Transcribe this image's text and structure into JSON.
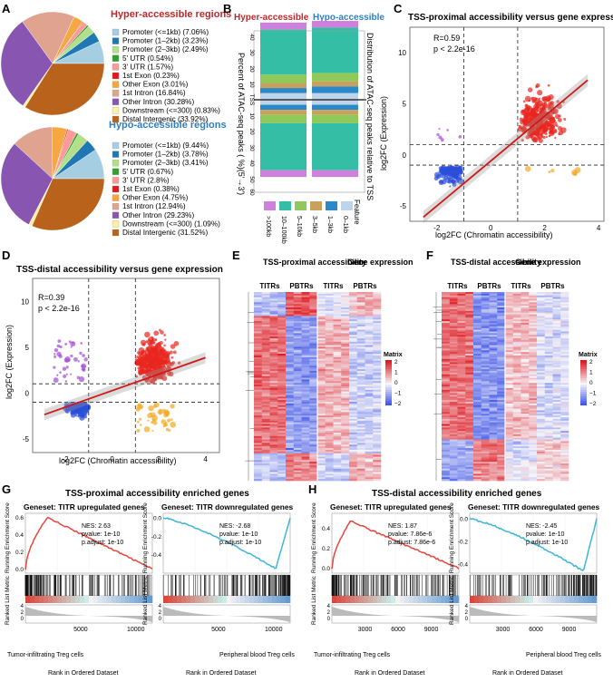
{
  "panelA": {
    "letter": "A",
    "hyper_title": "Hyper-accessible regions",
    "hypo_title": "Hypo-accessible regions",
    "hyper_legend": [
      "Promoter (<=1kb) (7.06%)",
      "Promoter (1–2kb) (3.23%)",
      "Promoter (2–3kb) (2.49%)",
      "5' UTR (0.54%)",
      "3' UTR (1.57%)",
      "1st Exon (0.23%)",
      "Other Exon (3.01%)",
      "1st Intron (16.84%)",
      "Other Intron (30.28%)",
      "Downstream (<=300) (0.83%)",
      "Distal Intergenic (33.92%)"
    ],
    "hypo_legend": [
      "Promoter (<=1kb) (9.44%)",
      "Promoter (1–2kb) (3.78%)",
      "Promoter (2–3kb) (3.41%)",
      "5' UTR (0.67%)",
      "3' UTR (2.8%)",
      "1st Exon (0.38%)",
      "Other Exon (4.75%)",
      "1st Intron (12.94%)",
      "Other Intron (29.23%)",
      "Downstream (<=300) (1.09%)",
      "Distal Intergenic (31.52%)"
    ]
  },
  "panelB": {
    "letter": "B",
    "title_hyper": "Hyper-accessible",
    "title_hypo": "Hypo-accessible",
    "ylabel": "Percent of ATAC-seq peaks ( %)(5'→3')",
    "right_label": "Distribution of ATAC-seq peaks relative to TSS",
    "ticks": [
      "40",
      "30",
      "20",
      "10",
      "TSS",
      "10",
      "20",
      "30",
      "40",
      "50",
      "60"
    ],
    "legend_title": "Feature",
    "legend": [
      ">100kb",
      "10–100kb",
      "5–10kb",
      "3–5kb",
      "1–3kb",
      "0–1kb"
    ]
  },
  "panelC": {
    "letter": "C",
    "title": "TSS-proximal accessibility versus gene expression",
    "stat_r": "R=0.59",
    "stat_p": "p < 2.2e-16",
    "xlabel": "log2FC (Chromatin accessibility)",
    "ylabel": "log2FC (Expression)",
    "xticks": [
      "-2",
      "0",
      "2",
      "4"
    ],
    "yticks": [
      "10",
      "5",
      "0",
      "-5"
    ]
  },
  "panelD": {
    "letter": "D",
    "title": "TSS-distal accessibility versus gene expression",
    "stat_r": "R=0.39",
    "stat_p": "p < 2.2e-16",
    "xlabel": "log2FC (Chromatin accessibility)",
    "ylabel": "log2FC (Expression)",
    "xticks": [
      "-2",
      "0",
      "2",
      "4"
    ],
    "yticks": [
      "10",
      "5",
      "0",
      "-5"
    ]
  },
  "panelE": {
    "letter": "E",
    "header_left": "TSS-proximal accessibility",
    "header_right": "Gene expression",
    "cols": [
      "TITRs",
      "PBTRs",
      "TITRs",
      "PBTRs"
    ],
    "legend_title": "Matrix",
    "legend_ticks": [
      "2",
      "1",
      "0",
      "−1",
      "−2"
    ]
  },
  "panelF": {
    "letter": "F",
    "header_left": "TSS-distal accessibility",
    "header_right": "Gene expression",
    "cols": [
      "TITRs",
      "PBTRs",
      "TITRs",
      "PBTRs"
    ],
    "legend_title": "Matrix",
    "legend_ticks": [
      "2",
      "1",
      "0",
      "−1",
      "−2"
    ]
  },
  "panelG": {
    "letter": "G",
    "title": "TSS-proximal accessibility enriched genes",
    "left": {
      "geneset": "Geneset: TITR upregulated genes",
      "nes": "NES: 2.63",
      "pvalue": "pvalue: 1e-10",
      "padj": "p.adjust: 1e-10"
    },
    "right": {
      "geneset": "Geneset: TITR downregulated genes",
      "nes": "NES: -2.68",
      "pvalue": "pvalue: 1e-10",
      "padj": "p.adjust: 1e-10"
    },
    "xlabel": "Rank in Ordered Dataset",
    "ylabel_top": "Running Enrichment Score",
    "ylabel_bottom": "Ranked List Metric",
    "label_left": "Tumor-infiltrating Treg cells",
    "label_right": "Peripheral blood Treg cells",
    "xticks_left": [
      "5000",
      "10000"
    ],
    "xticks_right": [
      "5000",
      "10000"
    ]
  },
  "panelH": {
    "letter": "H",
    "title": "TSS-distal accessibility enriched genes",
    "left": {
      "geneset": "Geneset: TITR upregulated genes",
      "nes": "NES: 1.87",
      "pvalue": "pvalue: 7.86e-6",
      "padj": "p.adjust: 7.86e-6"
    },
    "right": {
      "geneset": "Geneset: TITR downregulated genes",
      "nes": "NES: -2.45",
      "pvalue": "pvalue: 1e-10",
      "padj": "p.adjust: 1e-10"
    },
    "xlabel": "Rank in Ordered Dataset",
    "ylabel_top": "Running Enrichment Score",
    "ylabel_bottom": "Ranked List Metric",
    "label_left": "Tumor-infiltrating Treg cells",
    "label_right": "Peripheral blood Treg cells",
    "xticks_left": [
      "3000",
      "6000",
      "9000"
    ],
    "xticks_right": [
      "3000",
      "6000",
      "9000"
    ]
  },
  "chart_data": [
    {
      "type": "pie",
      "title": "Hyper-accessible regions",
      "categories": [
        "Promoter (<=1kb)",
        "Promoter (1–2kb)",
        "Promoter (2–3kb)",
        "5' UTR",
        "3' UTR",
        "1st Exon",
        "Other Exon",
        "1st Intron",
        "Other Intron",
        "Downstream (<=300)",
        "Distal Intergenic"
      ],
      "values": [
        7.06,
        3.23,
        2.49,
        0.54,
        1.57,
        0.23,
        3.01,
        16.84,
        30.28,
        0.83,
        33.92
      ]
    },
    {
      "type": "pie",
      "title": "Hypo-accessible regions",
      "categories": [
        "Promoter (<=1kb)",
        "Promoter (1–2kb)",
        "Promoter (2–3kb)",
        "5' UTR",
        "3' UTR",
        "1st Exon",
        "Other Exon",
        "1st Intron",
        "Other Intron",
        "Downstream (<=300)",
        "Distal Intergenic"
      ],
      "values": [
        9.44,
        3.78,
        3.41,
        0.67,
        2.8,
        0.38,
        4.75,
        12.94,
        29.23,
        1.09,
        31.52
      ]
    },
    {
      "type": "bar",
      "title": "Distribution of ATAC-seq peaks relative to TSS",
      "categories": [
        "Hyper-accessible",
        "Hypo-accessible"
      ],
      "features": [
        ">100kb",
        "10–100kb",
        "5–10kb",
        "3–5kb",
        "1–3kb",
        "0–1kb"
      ],
      "upstream": [
        [
          4,
          27,
          5,
          3,
          3,
          4
        ],
        [
          4,
          27,
          5,
          3,
          4,
          4
        ]
      ],
      "downstream": [
        [
          4,
          28,
          5,
          3,
          3,
          3
        ],
        [
          4,
          28,
          5,
          3,
          3,
          3
        ]
      ],
      "ylim": [
        -60,
        40
      ]
    },
    {
      "type": "scatter",
      "title": "TSS-proximal accessibility versus gene expression",
      "R": 0.59,
      "xlim": [
        -3,
        4.2
      ],
      "ylim": [
        -6.5,
        12.5
      ],
      "fit": {
        "slope": 2.2,
        "intercept": -0.6
      }
    },
    {
      "type": "scatter",
      "title": "TSS-distal accessibility versus gene expression",
      "R": 0.39,
      "xlim": [
        -3.4,
        4.6
      ],
      "ylim": [
        -6.5,
        12.5
      ],
      "fit": {
        "slope": 0.9,
        "intercept": 0.25
      }
    },
    {
      "type": "line",
      "title": "TSS-proximal: TITR upregulated genes",
      "xlim": [
        0,
        11500
      ],
      "ylim": [
        -0.05,
        0.65
      ],
      "peak_x": 2000,
      "peak_y": 0.6
    },
    {
      "type": "line",
      "title": "TSS-proximal: TITR downregulated genes",
      "xlim": [
        0,
        11500
      ],
      "ylim": [
        -0.6,
        0.05
      ],
      "trough_x": 10200,
      "trough_y": -0.55
    },
    {
      "type": "line",
      "title": "TSS-distal: TITR upregulated genes",
      "xlim": [
        0,
        11500
      ],
      "ylim": [
        -0.05,
        0.55
      ],
      "peak_x": 1700,
      "peak_y": 0.47
    },
    {
      "type": "line",
      "title": "TSS-distal: TITR downregulated genes",
      "xlim": [
        0,
        11500
      ],
      "ylim": [
        -0.48,
        0.05
      ],
      "trough_x": 10300,
      "trough_y": -0.46
    }
  ]
}
